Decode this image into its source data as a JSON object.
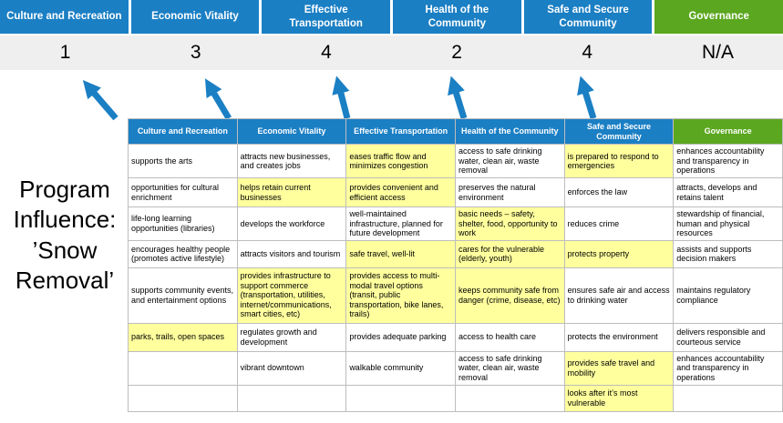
{
  "title": "Program Influence: ’Snow Removal’",
  "categories": [
    {
      "label": "Culture and Recreation",
      "score": "1",
      "theme": "blue"
    },
    {
      "label": "Economic Vitality",
      "score": "3",
      "theme": "blue"
    },
    {
      "label": "Effective Transportation",
      "score": "4",
      "theme": "blue"
    },
    {
      "label": "Health of the Community",
      "score": "2",
      "theme": "blue"
    },
    {
      "label": "Safe and Secure Community",
      "score": "4",
      "theme": "blue"
    },
    {
      "label": "Governance",
      "score": "N/A",
      "theme": "green"
    }
  ],
  "matrix": {
    "rows": [
      [
        {
          "text": "supports the arts",
          "highlight": false
        },
        {
          "text": "attracts new businesses, and creates jobs",
          "highlight": false
        },
        {
          "text": "eases traffic flow and minimizes congestion",
          "highlight": true
        },
        {
          "text": "access to safe drinking water, clean air, waste removal",
          "highlight": false
        },
        {
          "text": "is prepared to respond to emergencies",
          "highlight": true
        },
        {
          "text": "enhances accountability and transparency in operations",
          "highlight": false
        }
      ],
      [
        {
          "text": "opportunities for cultural enrichment",
          "highlight": false
        },
        {
          "text": "helps retain current businesses",
          "highlight": true
        },
        {
          "text": "provides convenient and efficient access",
          "highlight": true
        },
        {
          "text": "preserves the natural environment",
          "highlight": false
        },
        {
          "text": "enforces the law",
          "highlight": false
        },
        {
          "text": "attracts, develops and retains talent",
          "highlight": false
        }
      ],
      [
        {
          "text": "life-long learning opportunities (libraries)",
          "highlight": false
        },
        {
          "text": "develops the workforce",
          "highlight": false
        },
        {
          "text": "well-maintained infrastructure, planned for future development",
          "highlight": false
        },
        {
          "text": "basic needs – safety, shelter, food, opportunity to work",
          "highlight": true
        },
        {
          "text": "reduces crime",
          "highlight": false
        },
        {
          "text": "stewardship of financial, human and physical resources",
          "highlight": false
        }
      ],
      [
        {
          "text": "encourages healthy people (promotes active lifestyle)",
          "highlight": false
        },
        {
          "text": "attracts visitors and tourism",
          "highlight": false
        },
        {
          "text": "safe travel, well-lit",
          "highlight": true
        },
        {
          "text": "cares for the vulnerable (elderly, youth)",
          "highlight": true
        },
        {
          "text": "protects property",
          "highlight": true
        },
        {
          "text": "assists and supports decision makers",
          "highlight": false
        }
      ],
      [
        {
          "text": "supports community events, and entertainment options",
          "highlight": false
        },
        {
          "text": "provides infrastructure to support commerce (transportation, utilities, internet/communications, smart cities, etc)",
          "highlight": true
        },
        {
          "text": "provides access to multi-modal travel options (transit, public transportation, bike lanes, trails)",
          "highlight": true
        },
        {
          "text": "keeps community safe from danger (crime, disease, etc)",
          "highlight": true
        },
        {
          "text": "ensures safe air and access to drinking water",
          "highlight": false
        },
        {
          "text": "maintains regulatory compliance",
          "highlight": false
        }
      ],
      [
        {
          "text": "parks, trails, open spaces",
          "highlight": true
        },
        {
          "text": "regulates growth and development",
          "highlight": false
        },
        {
          "text": "provides adequate parking",
          "highlight": false
        },
        {
          "text": "access to health care",
          "highlight": false
        },
        {
          "text": "protects the environment",
          "highlight": false
        },
        {
          "text": "delivers responsible and courteous service",
          "highlight": false
        }
      ],
      [
        {
          "text": "",
          "highlight": false
        },
        {
          "text": "vibrant downtown",
          "highlight": false
        },
        {
          "text": "walkable community",
          "highlight": false
        },
        {
          "text": "access to safe drinking water, clean air, waste removal",
          "highlight": false
        },
        {
          "text": "provides safe travel and mobility",
          "highlight": true
        },
        {
          "text": "enhances accountability and transparency in operations",
          "highlight": false
        }
      ],
      [
        {
          "text": "",
          "highlight": false
        },
        {
          "text": "",
          "highlight": false
        },
        {
          "text": "",
          "highlight": false
        },
        {
          "text": "",
          "highlight": false
        },
        {
          "text": "looks after it’s most vulnerable",
          "highlight": true
        },
        {
          "text": "",
          "highlight": false
        }
      ]
    ]
  },
  "colors": {
    "category_blue": "#1b7fc4",
    "category_green": "#5ba71f",
    "highlight_yellow": "#ffff9e",
    "score_band_gray": "#efefef",
    "arrow_blue": "#1b7fc4"
  }
}
